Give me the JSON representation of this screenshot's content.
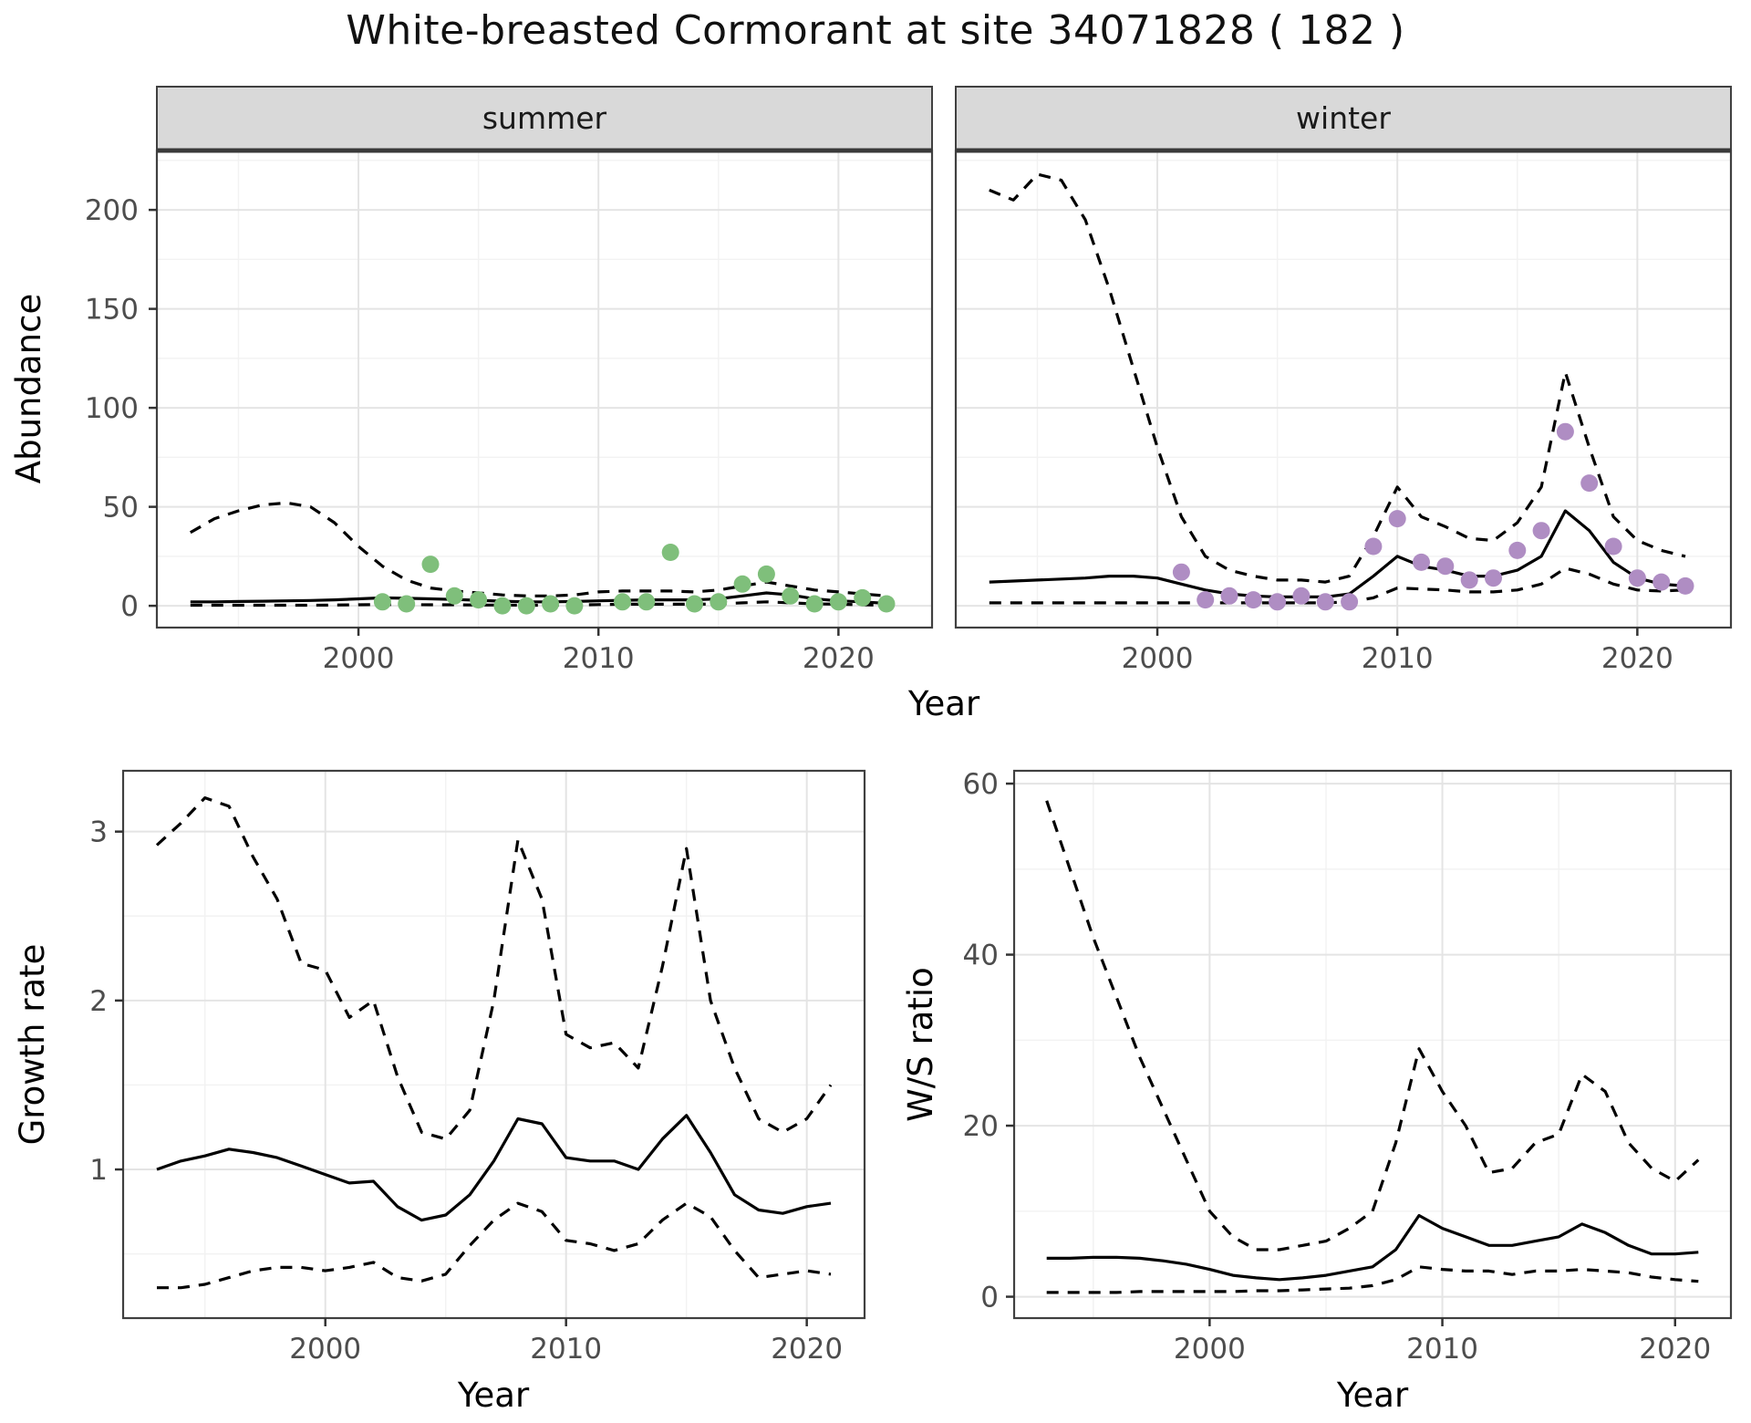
{
  "title": "White-breasted Cormorant at site 34071828 ( 182 )",
  "axis_labels": {
    "x": "Year",
    "abundance": "Abundance",
    "growth": "Growth rate",
    "ws": "W/S ratio"
  },
  "colors": {
    "summer_points": "#7fbf7b",
    "winter_points": "#af8dc3",
    "line": "#000000",
    "strip_bg": "#d9d9d9",
    "strip_edge": "#3a3a3a",
    "panel_border": "#404040",
    "grid_major": "#e4e4e4",
    "grid_minor": "#f2f2f2",
    "tick_text": "#4d4d4d",
    "tick_mark": "#333333"
  },
  "chart_data": [
    {
      "id": "abundance-summer",
      "type": "line",
      "facet_label": "summer",
      "ylabel": "Abundance",
      "xlabel": "Year",
      "xlim": [
        1991.6,
        2023.9
      ],
      "ylim": [
        -11,
        230
      ],
      "xticks": [
        2000,
        2010,
        2020
      ],
      "yticks": [
        0,
        50,
        100,
        150,
        200
      ],
      "x": [
        1993,
        1994,
        1995,
        1996,
        1997,
        1998,
        1999,
        2000,
        2001,
        2002,
        2003,
        2004,
        2005,
        2006,
        2007,
        2008,
        2009,
        2010,
        2011,
        2012,
        2013,
        2014,
        2015,
        2016,
        2017,
        2018,
        2019,
        2020,
        2021,
        2022
      ],
      "series": [
        {
          "name": "fit",
          "style": "solid",
          "values": [
            2,
            2,
            2.2,
            2.3,
            2.5,
            2.7,
            3,
            3.5,
            4,
            3.8,
            3.5,
            3.2,
            2.8,
            2.3,
            2,
            2,
            2.2,
            2.5,
            2.8,
            3,
            3,
            3,
            3.5,
            5,
            6.5,
            5.5,
            3.5,
            2.5,
            2,
            1.2
          ]
        },
        {
          "name": "upper-ci",
          "style": "dashed",
          "values": [
            37,
            44,
            48,
            51,
            52,
            50,
            42,
            30,
            20,
            13,
            9,
            7.5,
            6.5,
            5.5,
            5,
            5,
            5.5,
            7,
            7.5,
            7.5,
            7.5,
            7,
            8,
            10,
            12,
            10,
            8,
            7,
            6,
            5
          ]
        },
        {
          "name": "lower-ci",
          "style": "dashed",
          "values": [
            0.3,
            0.3,
            0.3,
            0.3,
            0.3,
            0.3,
            0.4,
            0.5,
            0.6,
            0.6,
            0.5,
            0.5,
            0.4,
            0.4,
            0.3,
            0.3,
            0.4,
            0.6,
            0.8,
            0.8,
            0.8,
            0.8,
            1,
            1.5,
            2,
            1.5,
            1,
            0.8,
            0.5,
            0.3
          ]
        }
      ],
      "points": {
        "color": "#7fbf7b",
        "x": [
          2001,
          2002,
          2003,
          2004,
          2005,
          2006,
          2007,
          2008,
          2009,
          2011,
          2012,
          2013,
          2014,
          2015,
          2016,
          2017,
          2018,
          2019,
          2020,
          2021,
          2022
        ],
        "y": [
          2,
          1,
          21,
          5,
          3,
          0,
          0,
          1,
          0,
          2,
          2,
          27,
          1,
          2,
          11,
          16,
          5,
          1,
          2,
          4,
          1
        ]
      }
    },
    {
      "id": "abundance-winter",
      "type": "line",
      "facet_label": "winter",
      "ylabel": "",
      "xlabel": "",
      "xlim": [
        1991.6,
        2023.9
      ],
      "ylim": [
        -11,
        230
      ],
      "xticks": [
        2000,
        2010,
        2020
      ],
      "yticks": [
        0,
        50,
        100,
        150,
        200
      ],
      "x": [
        1993,
        1994,
        1995,
        1996,
        1997,
        1998,
        1999,
        2000,
        2001,
        2002,
        2003,
        2004,
        2005,
        2006,
        2007,
        2008,
        2009,
        2010,
        2011,
        2012,
        2013,
        2014,
        2015,
        2016,
        2017,
        2018,
        2019,
        2020,
        2021,
        2022
      ],
      "series": [
        {
          "name": "fit",
          "style": "solid",
          "values": [
            12,
            12.5,
            13,
            13.5,
            14,
            15,
            15,
            14,
            11,
            8,
            6,
            5,
            4.5,
            4.5,
            4.5,
            6,
            15,
            25,
            20,
            18,
            15,
            15,
            18,
            25,
            48,
            38,
            22,
            14,
            11,
            10
          ]
        },
        {
          "name": "upper-ci",
          "style": "dashed",
          "values": [
            210,
            205,
            218,
            215,
            195,
            160,
            120,
            80,
            45,
            25,
            18,
            15,
            13,
            13,
            12,
            15,
            35,
            60,
            45,
            40,
            34,
            33,
            42,
            60,
            118,
            80,
            45,
            33,
            28,
            25
          ]
        },
        {
          "name": "lower-ci",
          "style": "dashed",
          "values": [
            1.5,
            1.5,
            1.5,
            1.5,
            1.5,
            1.5,
            1.5,
            1.5,
            1.5,
            1.5,
            1.5,
            1.5,
            1.5,
            1.5,
            1.5,
            2,
            4,
            9,
            8.5,
            8,
            7,
            7,
            8,
            11,
            19,
            16,
            11,
            8,
            7.5,
            8
          ]
        }
      ],
      "points": {
        "color": "#af8dc3",
        "x": [
          2001,
          2002,
          2003,
          2004,
          2005,
          2006,
          2007,
          2008,
          2009,
          2010,
          2011,
          2012,
          2013,
          2014,
          2015,
          2016,
          2017,
          2018,
          2019,
          2020,
          2021,
          2022
        ],
        "y": [
          17,
          3,
          5,
          3,
          2,
          5,
          2,
          2,
          30,
          44,
          22,
          20,
          13,
          14,
          28,
          38,
          88,
          62,
          30,
          14,
          12,
          10
        ]
      }
    },
    {
      "id": "growth",
      "type": "line",
      "facet_label": "",
      "ylabel": "Growth rate",
      "xlabel": "Year",
      "xlim": [
        1991.6,
        2022.4
      ],
      "ylim": [
        0.12,
        3.36
      ],
      "xticks": [
        2000,
        2010,
        2020
      ],
      "yticks": [
        1,
        2,
        3
      ],
      "x": [
        1993,
        1994,
        1995,
        1996,
        1997,
        1998,
        1999,
        2000,
        2001,
        2002,
        2003,
        2004,
        2005,
        2006,
        2007,
        2008,
        2009,
        2010,
        2011,
        2012,
        2013,
        2014,
        2015,
        2016,
        2017,
        2018,
        2019,
        2020,
        2021
      ],
      "series": [
        {
          "name": "fit",
          "style": "solid",
          "values": [
            1.0,
            1.05,
            1.08,
            1.12,
            1.1,
            1.07,
            1.02,
            0.97,
            0.92,
            0.93,
            0.78,
            0.7,
            0.73,
            0.85,
            1.05,
            1.3,
            1.27,
            1.07,
            1.05,
            1.05,
            1.0,
            1.18,
            1.32,
            1.1,
            0.85,
            0.76,
            0.74,
            0.78,
            0.8
          ]
        },
        {
          "name": "upper-ci",
          "style": "dashed",
          "values": [
            2.92,
            3.05,
            3.2,
            3.15,
            2.85,
            2.6,
            2.22,
            2.18,
            1.9,
            2.0,
            1.55,
            1.22,
            1.18,
            1.35,
            2.0,
            2.95,
            2.6,
            1.8,
            1.72,
            1.75,
            1.6,
            2.2,
            2.9,
            2.0,
            1.6,
            1.3,
            1.22,
            1.3,
            1.5
          ]
        },
        {
          "name": "lower-ci",
          "style": "dashed",
          "values": [
            0.3,
            0.3,
            0.32,
            0.36,
            0.4,
            0.42,
            0.42,
            0.4,
            0.42,
            0.45,
            0.36,
            0.34,
            0.38,
            0.55,
            0.7,
            0.8,
            0.75,
            0.58,
            0.56,
            0.52,
            0.56,
            0.7,
            0.8,
            0.72,
            0.52,
            0.36,
            0.38,
            0.4,
            0.38
          ]
        }
      ],
      "points": null
    },
    {
      "id": "ws",
      "type": "line",
      "facet_label": "",
      "ylabel": "W/S ratio",
      "xlabel": "Year",
      "xlim": [
        1991.6,
        2022.4
      ],
      "ylim": [
        -2.5,
        61.5
      ],
      "xticks": [
        2000,
        2010,
        2020
      ],
      "yticks": [
        0,
        20,
        40,
        60
      ],
      "x": [
        1993,
        1994,
        1995,
        1996,
        1997,
        1998,
        1999,
        2000,
        2001,
        2002,
        2003,
        2004,
        2005,
        2006,
        2007,
        2008,
        2009,
        2010,
        2011,
        2012,
        2013,
        2014,
        2015,
        2016,
        2017,
        2018,
        2019,
        2020,
        2021
      ],
      "series": [
        {
          "name": "fit",
          "style": "solid",
          "values": [
            4.5,
            4.5,
            4.6,
            4.6,
            4.5,
            4.2,
            3.8,
            3.2,
            2.5,
            2.2,
            2.0,
            2.2,
            2.5,
            3.0,
            3.5,
            5.5,
            9.5,
            8.0,
            7.0,
            6.0,
            6.0,
            6.5,
            7.0,
            8.5,
            7.5,
            6.0,
            5.0,
            5.0,
            5.2
          ]
        },
        {
          "name": "upper-ci",
          "style": "dashed",
          "values": [
            58,
            50,
            42,
            35,
            28,
            22,
            16,
            10,
            7,
            5.5,
            5.5,
            6,
            6.5,
            8,
            10,
            18,
            29,
            24,
            20,
            14.5,
            15,
            18,
            19,
            26,
            24,
            18,
            15,
            13.5,
            16
          ]
        },
        {
          "name": "lower-ci",
          "style": "dashed",
          "values": [
            0.5,
            0.5,
            0.5,
            0.5,
            0.6,
            0.6,
            0.6,
            0.6,
            0.6,
            0.7,
            0.7,
            0.8,
            0.9,
            1.0,
            1.3,
            2.0,
            3.5,
            3.2,
            3.0,
            3.0,
            2.6,
            3.0,
            3.0,
            3.2,
            3.0,
            2.8,
            2.3,
            2.0,
            1.8
          ]
        }
      ],
      "points": null
    }
  ]
}
